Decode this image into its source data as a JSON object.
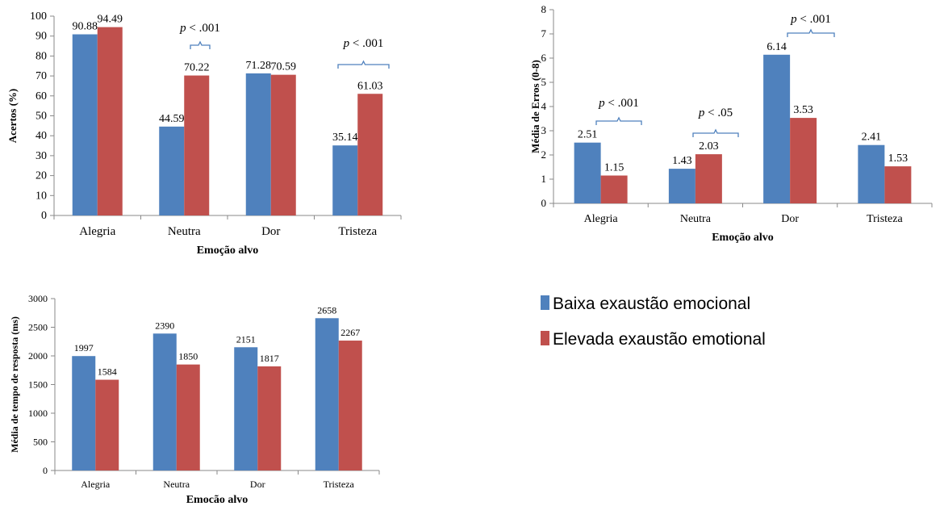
{
  "colors": {
    "baixa": "#4F81BD",
    "elevada": "#C0504D",
    "bracket": "#4F81BD",
    "axis": "#888888",
    "text": "#000000"
  },
  "legend": {
    "items": [
      {
        "label": "Baixa exaustão emocional",
        "color": "#4F81BD"
      },
      {
        "label": "Elevada exaustão emotional",
        "color": "#C0504D"
      }
    ],
    "placement": "right"
  },
  "chart_data": [
    {
      "id": "accuracy",
      "type": "bar",
      "categories": [
        "Alegria",
        "Neutra",
        "Dor",
        "Tristeza"
      ],
      "series": [
        {
          "name": "Baixa exaustão emocional",
          "values": [
            90.88,
            44.59,
            71.28,
            35.14
          ],
          "labels": [
            "90.88",
            "44.59",
            "71.28",
            "35.14"
          ]
        },
        {
          "name": "Elevada exaustão emotional",
          "values": [
            94.49,
            70.22,
            70.59,
            61.03
          ],
          "labels": [
            "94.49",
            "70.22",
            "70.59",
            "61.03"
          ]
        }
      ],
      "xlabel": "Emoção alvo",
      "ylabel": "Acertos (%)",
      "ylim": [
        0,
        100
      ],
      "yticks": [
        "0",
        "10",
        "20",
        "30",
        "40",
        "50",
        "60",
        "70",
        "80",
        "90",
        "100"
      ],
      "grid": false,
      "annotations": [
        {
          "category": "Neutra",
          "text": "p < .001"
        },
        {
          "category": "Tristeza",
          "text": "p < .001"
        }
      ]
    },
    {
      "id": "errors",
      "type": "bar",
      "categories": [
        "Alegria",
        "Neutra",
        "Dor",
        "Tristeza"
      ],
      "series": [
        {
          "name": "Baixa exaustão emocional",
          "values": [
            2.51,
            1.43,
            6.14,
            2.41
          ],
          "labels": [
            "2.51",
            "1.43",
            "6.14",
            "2.41"
          ]
        },
        {
          "name": "Elevada exaustão emotional",
          "values": [
            1.15,
            2.03,
            3.53,
            1.53
          ],
          "labels": [
            "1.15",
            "2.03",
            "3.53",
            "1.53"
          ]
        }
      ],
      "xlabel": "Emoção alvo",
      "ylabel": "Média de Erros (0-8)",
      "ylim": [
        0,
        8
      ],
      "yticks": [
        "0",
        "1",
        "2",
        "3",
        "4",
        "5",
        "6",
        "7",
        "8"
      ],
      "grid": false,
      "annotations": [
        {
          "category": "Alegria",
          "text": "p < .001"
        },
        {
          "category": "Neutra",
          "text": "p < .05"
        },
        {
          "category": "Dor",
          "text": "p < .001"
        }
      ]
    },
    {
      "id": "rt",
      "type": "bar",
      "categories": [
        "Alegria",
        "Neutra",
        "Dor",
        "Tristeza"
      ],
      "series": [
        {
          "name": "Baixa exaustão emocional",
          "values": [
            1997,
            2390,
            2151,
            2658
          ],
          "labels": [
            "1997",
            "2390",
            "2151",
            "2658"
          ]
        },
        {
          "name": "Elevada exaustão emotional",
          "values": [
            1584,
            1850,
            1817,
            2267
          ],
          "labels": [
            "1584",
            "1850",
            "1817",
            "2267"
          ]
        }
      ],
      "xlabel": "Emocão alvo",
      "ylabel": "Média de tempo de resposta (ms)",
      "ylim": [
        0,
        3000
      ],
      "yticks": [
        "0",
        "500",
        "1000",
        "1500",
        "2000",
        "2500",
        "3000"
      ],
      "grid": false,
      "annotations": []
    }
  ]
}
